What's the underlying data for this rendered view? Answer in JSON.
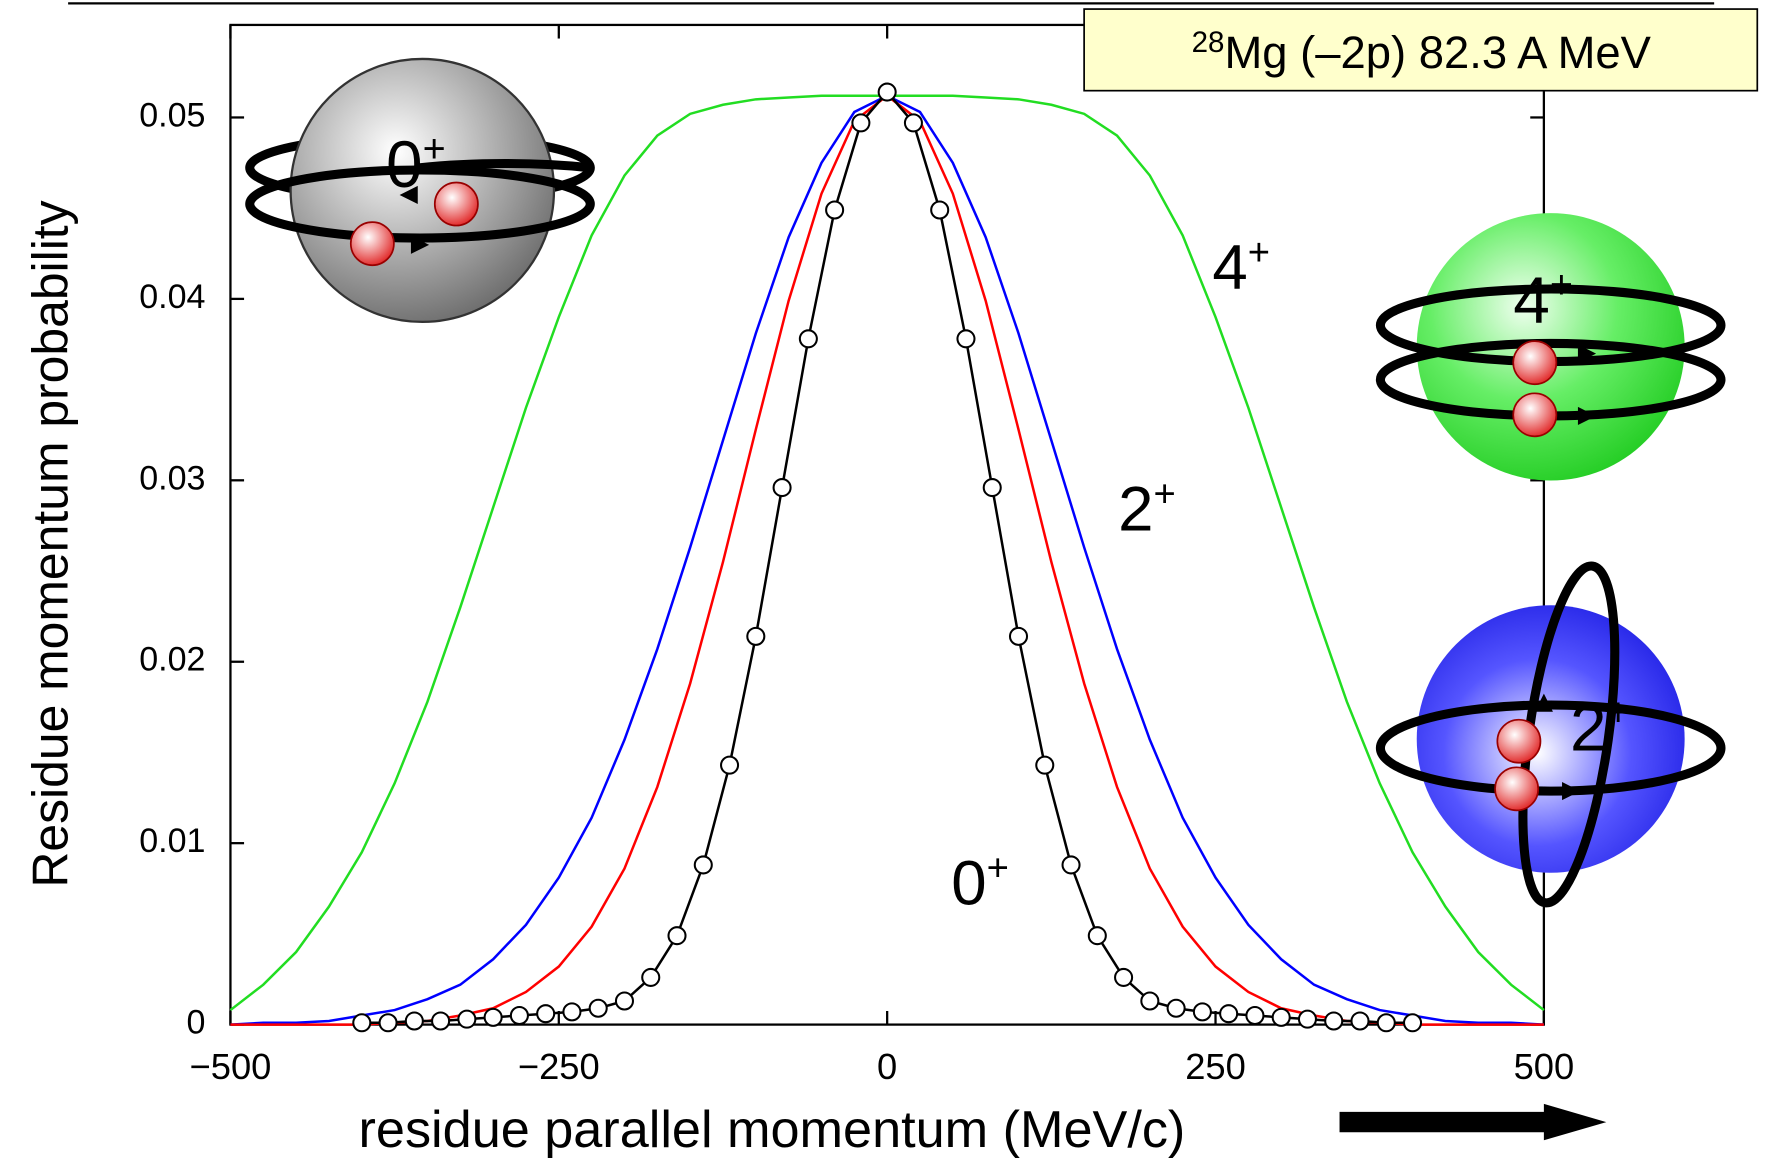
{
  "chart_data": {
    "type": "line",
    "title": {
      "sup": "28",
      "text": "Mg (–2p) 82.3 A MeV"
    },
    "xlabel": "residue parallel momentum (MeV/c)",
    "ylabel": "Residue momentum probability",
    "xlim": [
      -500,
      500
    ],
    "ylim": [
      0,
      0.0551
    ],
    "xticks": [
      {
        "value": -500,
        "label": "−500"
      },
      {
        "value": -250,
        "label": "−250"
      },
      0,
      250,
      500
    ],
    "yticks": [
      0,
      0.01,
      0.02,
      0.03,
      0.04,
      0.05
    ],
    "series": [
      {
        "color": "#22dd22",
        "x": [
          -500,
          -475,
          -450,
          -425,
          -400,
          -375,
          -350,
          -325,
          -300,
          -275,
          -250,
          -225,
          -200,
          -175,
          -150,
          -125,
          -100,
          -75,
          -50,
          -25,
          0,
          25,
          50,
          75,
          100,
          125,
          150,
          175,
          200,
          225,
          250,
          275,
          300,
          325,
          350,
          375,
          400,
          425,
          450,
          475,
          500
        ],
        "values": [
          0.0008,
          0.0022,
          0.004,
          0.0065,
          0.0095,
          0.0133,
          0.0178,
          0.023,
          0.0285,
          0.034,
          0.039,
          0.0435,
          0.0468,
          0.049,
          0.0502,
          0.0507,
          0.051,
          0.0511,
          0.0512,
          0.0512,
          0.0512,
          0.0512,
          0.0512,
          0.0511,
          0.051,
          0.0507,
          0.0502,
          0.049,
          0.0468,
          0.0435,
          0.039,
          0.034,
          0.0285,
          0.023,
          0.0178,
          0.0133,
          0.0095,
          0.0065,
          0.004,
          0.0022,
          0.0008
        ]
      },
      {
        "color": "#0000ff",
        "x": [
          -500,
          -475,
          -450,
          -425,
          -400,
          -375,
          -350,
          -325,
          -300,
          -275,
          -250,
          -225,
          -200,
          -175,
          -150,
          -125,
          -100,
          -75,
          -50,
          -25,
          0,
          25,
          50,
          75,
          100,
          125,
          150,
          175,
          200,
          225,
          250,
          275,
          300,
          325,
          350,
          375,
          400,
          425,
          450,
          475,
          500
        ],
        "values": [
          0,
          0.0001,
          0.0001,
          0.0002,
          0.0005,
          0.0008,
          0.0014,
          0.0022,
          0.0036,
          0.0055,
          0.0081,
          0.0114,
          0.0157,
          0.0207,
          0.0263,
          0.0322,
          0.0381,
          0.0434,
          0.0475,
          0.0503,
          0.0512,
          0.0503,
          0.0475,
          0.0434,
          0.0381,
          0.0322,
          0.0263,
          0.0207,
          0.0157,
          0.0114,
          0.0081,
          0.0055,
          0.0036,
          0.0022,
          0.0014,
          0.0008,
          0.0005,
          0.0002,
          0.0001,
          0.0001,
          0
        ]
      },
      {
        "color": "#ff0000",
        "x": [
          -500,
          -475,
          -450,
          -425,
          -400,
          -375,
          -350,
          -325,
          -300,
          -275,
          -250,
          -225,
          -200,
          -175,
          -150,
          -125,
          -100,
          -75,
          -50,
          -25,
          0,
          25,
          50,
          75,
          100,
          125,
          150,
          175,
          200,
          225,
          250,
          275,
          300,
          325,
          350,
          375,
          400,
          425,
          450,
          475,
          500
        ],
        "values": [
          0,
          0,
          0,
          0,
          0,
          0.0001,
          0.0002,
          0.0005,
          0.0009,
          0.0018,
          0.0032,
          0.0054,
          0.0086,
          0.0131,
          0.0188,
          0.0255,
          0.0328,
          0.0399,
          0.0458,
          0.0498,
          0.0512,
          0.0498,
          0.0458,
          0.0399,
          0.0328,
          0.0255,
          0.0188,
          0.0131,
          0.0086,
          0.0054,
          0.0032,
          0.0018,
          0.0009,
          0.0005,
          0.0002,
          0.0001,
          0,
          0,
          0,
          0,
          0
        ]
      },
      {
        "color": "#000000",
        "markers": true,
        "x": [
          -400,
          -380,
          -360,
          -340,
          -320,
          -300,
          -280,
          -260,
          -240,
          -220,
          -200,
          -180,
          -160,
          -140,
          -120,
          -100,
          -80,
          -60,
          -40,
          -20,
          0,
          20,
          40,
          60,
          80,
          100,
          120,
          140,
          160,
          180,
          200,
          220,
          240,
          260,
          280,
          300,
          320,
          340,
          360,
          380,
          400
        ],
        "values": [
          0.0001,
          0.0001,
          0.0002,
          0.0002,
          0.0003,
          0.0004,
          0.0005,
          0.0006,
          0.0007,
          0.0009,
          0.0013,
          0.0026,
          0.0049,
          0.0088,
          0.0143,
          0.0214,
          0.0296,
          0.0378,
          0.0449,
          0.0497,
          0.0514,
          0.0497,
          0.0449,
          0.0378,
          0.0296,
          0.0214,
          0.0143,
          0.0088,
          0.0049,
          0.0026,
          0.0013,
          0.0009,
          0.0007,
          0.0006,
          0.0005,
          0.0004,
          0.0003,
          0.0002,
          0.0002,
          0.0001,
          0.0001
        ]
      }
    ],
    "annotations": [
      {
        "text": "4",
        "sup": "+"
      },
      {
        "text": "2",
        "sup": "+"
      },
      {
        "text": "0",
        "sup": "+"
      }
    ],
    "icons": [
      {
        "text": "0",
        "sup": "+"
      },
      {
        "text": "4",
        "sup": "+"
      },
      {
        "text": "2",
        "sup": "+"
      }
    ]
  }
}
